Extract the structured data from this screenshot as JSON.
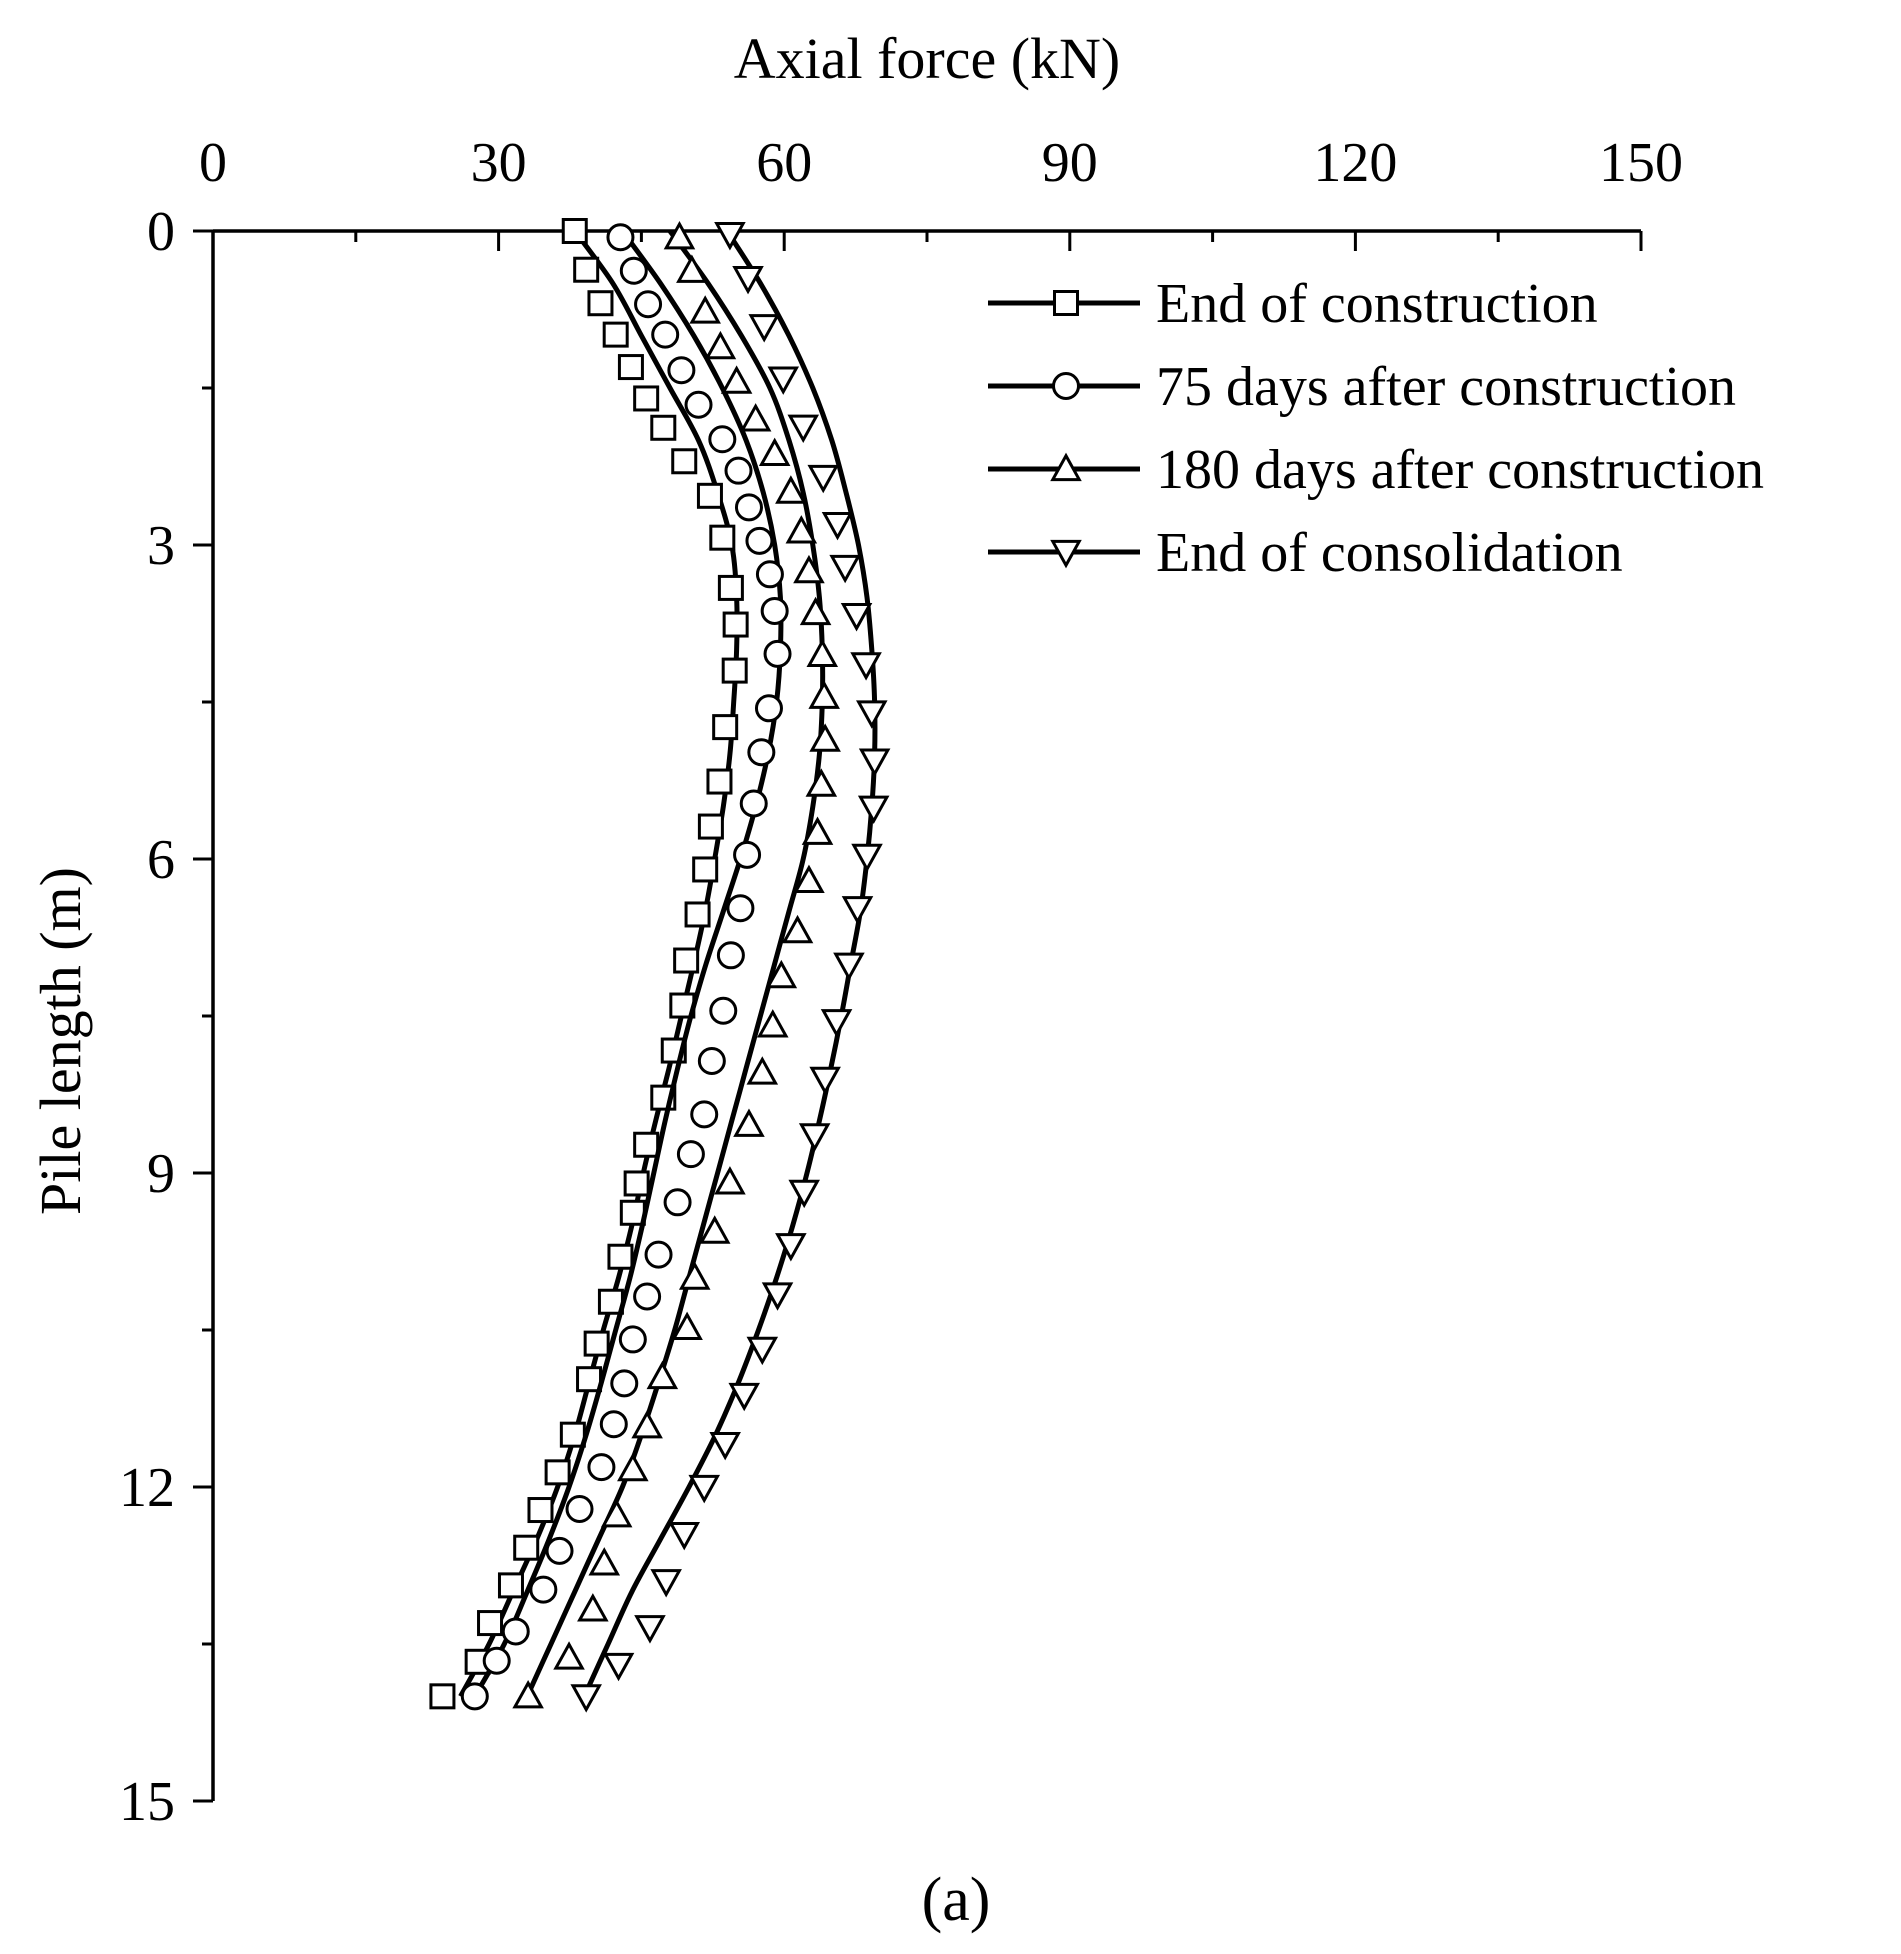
{
  "chart_data": {
    "type": "line",
    "orientation": "vertical-profile",
    "xlabel": "Axial force (kN)",
    "ylabel": "Pile length (m)",
    "xlim": [
      0,
      150
    ],
    "ylim": [
      0,
      15
    ],
    "x_axis_position": "top",
    "y_axis_inverted": true,
    "x_ticks": [
      0,
      30,
      60,
      90,
      120,
      150
    ],
    "y_ticks": [
      0,
      3,
      6,
      9,
      12,
      15
    ],
    "legend_position": "top-right",
    "panel_label": "(a)",
    "depths": [
      0,
      0.25,
      0.5,
      0.75,
      1.0,
      1.25,
      1.5,
      1.75,
      2.0,
      2.25,
      2.5,
      2.75,
      3.0,
      3.25,
      3.5,
      3.75,
      4.0,
      4.25,
      4.5,
      4.75,
      5.0,
      5.25,
      5.5,
      5.75,
      6.0,
      6.25,
      6.5,
      6.75,
      7.0,
      7.25,
      7.5,
      7.75,
      8.0,
      8.25,
      8.5,
      8.75,
      9.0,
      9.25,
      9.5,
      9.75,
      10.0,
      10.25,
      10.5,
      10.75,
      11.0,
      11.25,
      11.5,
      11.75,
      12.0,
      12.25,
      12.5,
      12.75,
      13.0,
      13.25,
      13.5,
      13.75,
      14.0
    ],
    "series": [
      {
        "name": "End of construction",
        "marker": "square",
        "curve": [
          [
            38,
            0
          ],
          [
            42,
            0.5
          ],
          [
            45,
            1.0
          ],
          [
            48,
            1.5
          ],
          [
            51,
            2.0
          ],
          [
            53,
            2.5
          ],
          [
            54.5,
            3.0
          ],
          [
            55,
            3.5
          ],
          [
            55,
            4.0
          ],
          [
            54.7,
            4.5
          ],
          [
            54.3,
            5.0
          ],
          [
            53.6,
            5.5
          ],
          [
            52.7,
            6.0
          ],
          [
            51.7,
            6.5
          ],
          [
            50.5,
            7.0
          ],
          [
            49.2,
            7.5
          ],
          [
            47.9,
            8.0
          ],
          [
            46.5,
            8.5
          ],
          [
            45.2,
            9.0
          ],
          [
            44,
            9.5
          ],
          [
            42.6,
            10.0
          ],
          [
            41,
            10.5
          ],
          [
            39.5,
            11.0
          ],
          [
            38,
            11.5
          ],
          [
            36.2,
            12.0
          ],
          [
            34,
            12.5
          ],
          [
            31.5,
            13.0
          ],
          [
            29,
            13.5
          ],
          [
            26,
            14.0
          ]
        ],
        "points": [
          [
            38,
            0
          ],
          [
            39.2,
            0.37
          ],
          [
            40.7,
            0.69
          ],
          [
            42.3,
            0.99
          ],
          [
            43.9,
            1.3
          ],
          [
            45.5,
            1.6
          ],
          [
            47.3,
            1.88
          ],
          [
            49.5,
            2.2
          ],
          [
            52.2,
            2.53
          ],
          [
            53.5,
            2.93
          ],
          [
            54.4,
            3.41
          ],
          [
            54.9,
            3.76
          ],
          [
            54.8,
            4.2
          ],
          [
            53.8,
            4.74
          ],
          [
            53.2,
            5.26
          ],
          [
            52.3,
            5.69
          ],
          [
            51.7,
            6.1
          ],
          [
            50.9,
            6.53
          ],
          [
            49.7,
            6.97
          ],
          [
            49.3,
            7.4
          ],
          [
            48.4,
            7.83
          ],
          [
            47.3,
            8.28
          ],
          [
            45.5,
            8.73
          ],
          [
            44.5,
            9.1
          ],
          [
            44.1,
            9.38
          ],
          [
            42.8,
            9.8
          ],
          [
            41.8,
            10.23
          ],
          [
            40.3,
            10.63
          ],
          [
            39.5,
            10.97
          ],
          [
            37.8,
            11.5
          ],
          [
            36.2,
            11.86
          ],
          [
            34.4,
            12.22
          ],
          [
            32.9,
            12.58
          ],
          [
            31.3,
            12.94
          ],
          [
            29.1,
            13.3
          ],
          [
            27.8,
            13.67
          ],
          [
            24.1,
            14.0
          ]
        ]
      },
      {
        "name": "75 days after construction",
        "marker": "circle",
        "curve": [
          [
            43,
            0
          ],
          [
            47,
            0.5
          ],
          [
            50.5,
            1.0
          ],
          [
            53.5,
            1.5
          ],
          [
            56,
            2.0
          ],
          [
            57.8,
            2.5
          ],
          [
            59,
            3.0
          ],
          [
            59.6,
            3.5
          ],
          [
            59.6,
            4.0
          ],
          [
            59.2,
            4.5
          ],
          [
            58.3,
            5.0
          ],
          [
            57,
            5.5
          ],
          [
            55.4,
            6.0
          ],
          [
            53.6,
            6.5
          ],
          [
            51.8,
            7.0
          ],
          [
            50.2,
            7.5
          ],
          [
            48.8,
            8.0
          ],
          [
            47.5,
            8.5
          ],
          [
            46.3,
            9.0
          ],
          [
            45.1,
            9.5
          ],
          [
            43.8,
            10.0
          ],
          [
            42.3,
            10.5
          ],
          [
            40.8,
            11.0
          ],
          [
            39.2,
            11.5
          ],
          [
            37.4,
            12.0
          ],
          [
            35.3,
            12.5
          ],
          [
            33,
            13.0
          ],
          [
            30.6,
            13.5
          ],
          [
            27.5,
            14.0
          ]
        ],
        "points": [
          [
            42.8,
            0.06
          ],
          [
            44.2,
            0.38
          ],
          [
            45.7,
            0.7
          ],
          [
            47.5,
            0.99
          ],
          [
            49.2,
            1.33
          ],
          [
            51,
            1.66
          ],
          [
            53.5,
            1.99
          ],
          [
            55.2,
            2.29
          ],
          [
            56.3,
            2.64
          ],
          [
            57.4,
            2.96
          ],
          [
            58.5,
            3.28
          ],
          [
            59,
            3.63
          ],
          [
            59.3,
            4.04
          ],
          [
            58.4,
            4.56
          ],
          [
            57.6,
            4.98
          ],
          [
            56.8,
            5.47
          ],
          [
            56.1,
            5.96
          ],
          [
            55.4,
            6.47
          ],
          [
            54.4,
            6.92
          ],
          [
            53.6,
            7.45
          ],
          [
            52.4,
            7.93
          ],
          [
            51.6,
            8.44
          ],
          [
            50.2,
            8.82
          ],
          [
            48.8,
            9.28
          ],
          [
            46.8,
            9.78
          ],
          [
            45.6,
            10.18
          ],
          [
            44.1,
            10.59
          ],
          [
            43.2,
            11.01
          ],
          [
            42.1,
            11.4
          ],
          [
            40.8,
            11.81
          ],
          [
            38.5,
            12.21
          ],
          [
            36.4,
            12.61
          ],
          [
            34.7,
            12.98
          ],
          [
            31.8,
            13.38
          ],
          [
            29.8,
            13.66
          ],
          [
            27.5,
            14.0
          ]
        ]
      },
      {
        "name": "180 days after construction",
        "marker": "triangle-up",
        "curve": [
          [
            48,
            0
          ],
          [
            52,
            0.5
          ],
          [
            55.5,
            1.0
          ],
          [
            58.5,
            1.5
          ],
          [
            60.5,
            2.0
          ],
          [
            62,
            2.5
          ],
          [
            63,
            3.0
          ],
          [
            63.7,
            3.5
          ],
          [
            64,
            4.0
          ],
          [
            64,
            4.5
          ],
          [
            63.7,
            5.0
          ],
          [
            63,
            5.5
          ],
          [
            62,
            6.0
          ],
          [
            60.5,
            6.5
          ],
          [
            59,
            7.0
          ],
          [
            57.5,
            7.5
          ],
          [
            56,
            8.0
          ],
          [
            54.5,
            8.5
          ],
          [
            53,
            9.0
          ],
          [
            51.5,
            9.5
          ],
          [
            50,
            10.0
          ],
          [
            48.5,
            10.5
          ],
          [
            46.8,
            11.0
          ],
          [
            45,
            11.5
          ],
          [
            43,
            12.0
          ],
          [
            40.5,
            12.5
          ],
          [
            38,
            13.0
          ],
          [
            35.5,
            13.5
          ],
          [
            33,
            14.0
          ]
        ],
        "points": [
          [
            49,
            0.06
          ],
          [
            50.3,
            0.38
          ],
          [
            51.7,
            0.77
          ],
          [
            53.3,
            1.11
          ],
          [
            55,
            1.44
          ],
          [
            57,
            1.8
          ],
          [
            59,
            2.13
          ],
          [
            60.7,
            2.49
          ],
          [
            61.8,
            2.87
          ],
          [
            62.6,
            3.25
          ],
          [
            63.3,
            3.65
          ],
          [
            64,
            4.05
          ],
          [
            64.2,
            4.45
          ],
          [
            64.3,
            4.86
          ],
          [
            63.9,
            5.29
          ],
          [
            63.5,
            5.75
          ],
          [
            62.6,
            6.21
          ],
          [
            61.4,
            6.69
          ],
          [
            59.7,
            7.12
          ],
          [
            58.8,
            7.59
          ],
          [
            57.7,
            8.04
          ],
          [
            56.3,
            8.54
          ],
          [
            54.3,
            9.09
          ],
          [
            52.7,
            9.56
          ],
          [
            50.6,
            10.0
          ],
          [
            49.8,
            10.48
          ],
          [
            47.2,
            10.95
          ],
          [
            45.6,
            11.42
          ],
          [
            44.1,
            11.83
          ],
          [
            42.4,
            12.27
          ],
          [
            41.1,
            12.73
          ],
          [
            39.9,
            13.17
          ],
          [
            37.4,
            13.63
          ],
          [
            33.1,
            14.0
          ]
        ]
      },
      {
        "name": "End of consolidation",
        "marker": "triangle-down",
        "curve": [
          [
            54,
            0
          ],
          [
            57.5,
            0.5
          ],
          [
            60.5,
            1.0
          ],
          [
            63,
            1.5
          ],
          [
            65,
            2.0
          ],
          [
            66.5,
            2.5
          ],
          [
            67.8,
            3.0
          ],
          [
            68.7,
            3.5
          ],
          [
            69.2,
            4.0
          ],
          [
            69.5,
            4.5
          ],
          [
            69.5,
            5.0
          ],
          [
            69.2,
            5.5
          ],
          [
            68.7,
            6.0
          ],
          [
            68,
            6.5
          ],
          [
            67,
            7.0
          ],
          [
            66,
            7.5
          ],
          [
            64.9,
            8.0
          ],
          [
            63.7,
            8.5
          ],
          [
            62.4,
            9.0
          ],
          [
            60.9,
            9.5
          ],
          [
            59.2,
            10.0
          ],
          [
            57.3,
            10.5
          ],
          [
            55.2,
            11.0
          ],
          [
            52.8,
            11.5
          ],
          [
            50,
            12.0
          ],
          [
            47,
            12.5
          ],
          [
            44,
            13.0
          ],
          [
            41.5,
            13.5
          ],
          [
            39,
            14.0
          ]
        ],
        "points": [
          [
            54.3,
            0.03
          ],
          [
            56.2,
            0.45
          ],
          [
            57.9,
            0.91
          ],
          [
            59.9,
            1.41
          ],
          [
            62,
            1.87
          ],
          [
            64.1,
            2.35
          ],
          [
            65.6,
            2.8
          ],
          [
            66.4,
            3.21
          ],
          [
            67.6,
            3.67
          ],
          [
            68.6,
            4.14
          ],
          [
            69.2,
            4.6
          ],
          [
            69.5,
            5.06
          ],
          [
            69.4,
            5.51
          ],
          [
            68.7,
            5.97
          ],
          [
            67.7,
            6.47
          ],
          [
            66.8,
            7.01
          ],
          [
            65.5,
            7.55
          ],
          [
            64.3,
            8.1
          ],
          [
            63.2,
            8.64
          ],
          [
            62.1,
            9.18
          ],
          [
            60.7,
            9.69
          ],
          [
            59.3,
            10.16
          ],
          [
            57.7,
            10.68
          ],
          [
            55.8,
            11.12
          ],
          [
            53.8,
            11.59
          ],
          [
            51.6,
            12.0
          ],
          [
            49.5,
            12.45
          ],
          [
            47.6,
            12.9
          ],
          [
            45.9,
            13.34
          ],
          [
            42.6,
            13.7
          ],
          [
            39.2,
            14.0
          ]
        ]
      }
    ]
  }
}
